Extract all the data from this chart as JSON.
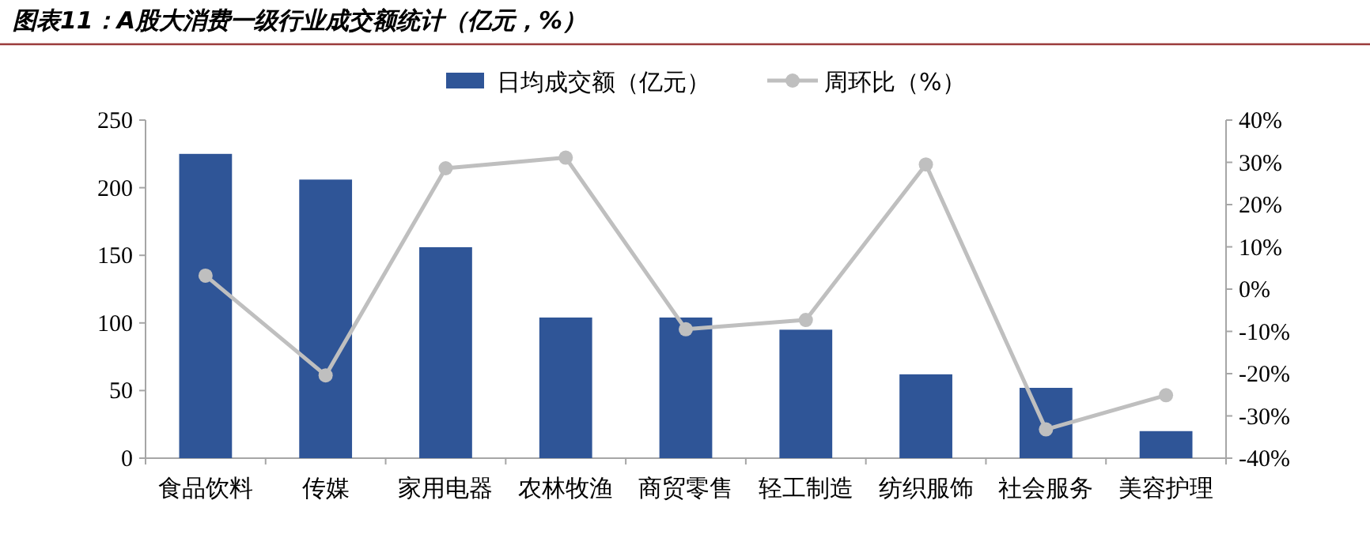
{
  "chart_data": {
    "type": "bar",
    "title": "图表11：A股大消费一级行业成交额统计（亿元，%）",
    "categories": [
      "食品饮料",
      "传媒",
      "家用电器",
      "农林牧渔",
      "商贸零售",
      "轻工制造",
      "纺织服饰",
      "社会服务",
      "美容护理"
    ],
    "series": [
      {
        "name": "日均成交额（亿元）",
        "color": "#2f5597",
        "values": [
          225,
          206,
          156,
          104,
          104,
          95,
          62,
          52,
          20
        ]
      },
      {
        "name": "周环比（%）",
        "type": "line",
        "axis": "y2",
        "color": "#bfbfbf",
        "marker": "circle",
        "values": [
          3.2,
          -20.4,
          28.6,
          31.1,
          -9.5,
          -7.3,
          29.5,
          -33.2,
          -25.1
        ]
      }
    ],
    "ylim": [
      0,
      250
    ],
    "yticks": [
      0,
      50,
      100,
      150,
      200,
      250
    ],
    "y2lim": [
      -40,
      40
    ],
    "y2ticks": [
      {
        "value": -40,
        "label": "-40%"
      },
      {
        "value": -30,
        "label": "-30%"
      },
      {
        "value": -20,
        "label": "-20%"
      },
      {
        "value": -10,
        "label": "-10%"
      },
      {
        "value": 0,
        "label": "0%"
      },
      {
        "value": 10,
        "label": "10%"
      },
      {
        "value": 20,
        "label": "20%"
      },
      {
        "value": 30,
        "label": "30%"
      },
      {
        "value": 40,
        "label": "40%"
      }
    ],
    "grid": false,
    "legend": "top"
  }
}
